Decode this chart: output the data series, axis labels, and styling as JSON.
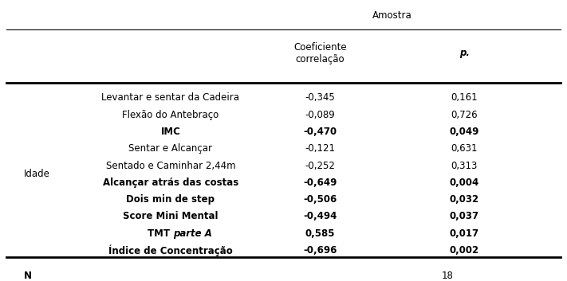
{
  "title_top": "Amostra",
  "col_header1": "Coeficiente\ncorrelação",
  "col_header2": "p.",
  "row_label": "Idade",
  "rows": [
    {
      "label": "Levantar e sentar da Cadeira",
      "coef": "-0,345",
      "p": "0,161",
      "bold": false,
      "italic_part": null
    },
    {
      "label": "Flexão do Antebraço",
      "coef": "-0,089",
      "p": "0,726",
      "bold": false,
      "italic_part": null
    },
    {
      "label": "IMC",
      "coef": "-0,470",
      "p": "0,049",
      "bold": true,
      "italic_part": null
    },
    {
      "label": "Sentar e Alcançar",
      "coef": "-0,121",
      "p": "0,631",
      "bold": false,
      "italic_part": null
    },
    {
      "label": "Sentado e Caminhar 2,44m",
      "coef": "-0,252",
      "p": "0,313",
      "bold": false,
      "italic_part": null
    },
    {
      "label": "Alcançar atrás das costas",
      "coef": "-0,649",
      "p": "0,004",
      "bold": true,
      "italic_part": null
    },
    {
      "label": "Dois min de step",
      "coef": "-0,506",
      "p": "0,032",
      "bold": true,
      "italic_part": null
    },
    {
      "label": "Score Mini Mental",
      "coef": "-0,494",
      "p": "0,037",
      "bold": true,
      "italic_part": null
    },
    {
      "label": "TMT parte A",
      "coef": "0,585",
      "p": "0,017",
      "bold": true,
      "italic_part": "parte A"
    },
    {
      "label": "Índice de Concentração",
      "coef": "-0,696",
      "p": "0,002",
      "bold": true,
      "italic_part": null
    }
  ],
  "n_label": "N",
  "n_value": "18",
  "bg_color": "#ffffff",
  "text_color": "#000000",
  "fontsize": 8.5
}
